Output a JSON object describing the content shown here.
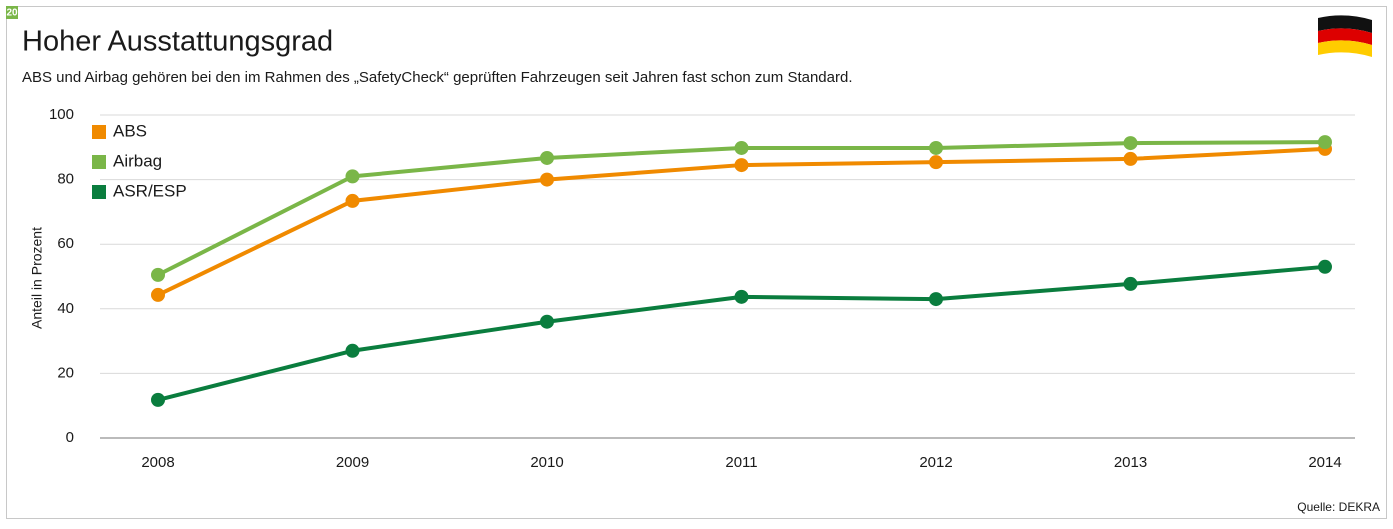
{
  "badge": "20",
  "chart_data": {
    "type": "line",
    "title": "Hoher Ausstattungsgrad",
    "subtitle": "ABS und Airbag gehören bei den im Rahmen des „SafetyCheck“ geprüften Fahrzeugen seit Jahren fast schon zum Standard.",
    "ylabel": "Anteil in Prozent",
    "source": "Quelle: DEKRA",
    "categories": [
      "2008",
      "2009",
      "2010",
      "2011",
      "2012",
      "2013",
      "2014"
    ],
    "series": [
      {
        "name": "ABS",
        "color": "#f08a00",
        "values": [
          44.3,
          73.4,
          80,
          84.5,
          85.4,
          86.4,
          89.5
        ]
      },
      {
        "name": "Airbag",
        "color": "#7ab648",
        "values": [
          50.5,
          81,
          86.7,
          89.8,
          89.8,
          91.3,
          91.6
        ]
      },
      {
        "name": "ASR/ESP",
        "color": "#0a7d3e",
        "values": [
          11.8,
          27,
          36,
          43.7,
          43,
          47.7,
          53
        ]
      }
    ],
    "ylim": [
      0,
      100
    ],
    "yticks": [
      0,
      20,
      40,
      60,
      80,
      100
    ],
    "grid": true,
    "legend": "top-left"
  }
}
